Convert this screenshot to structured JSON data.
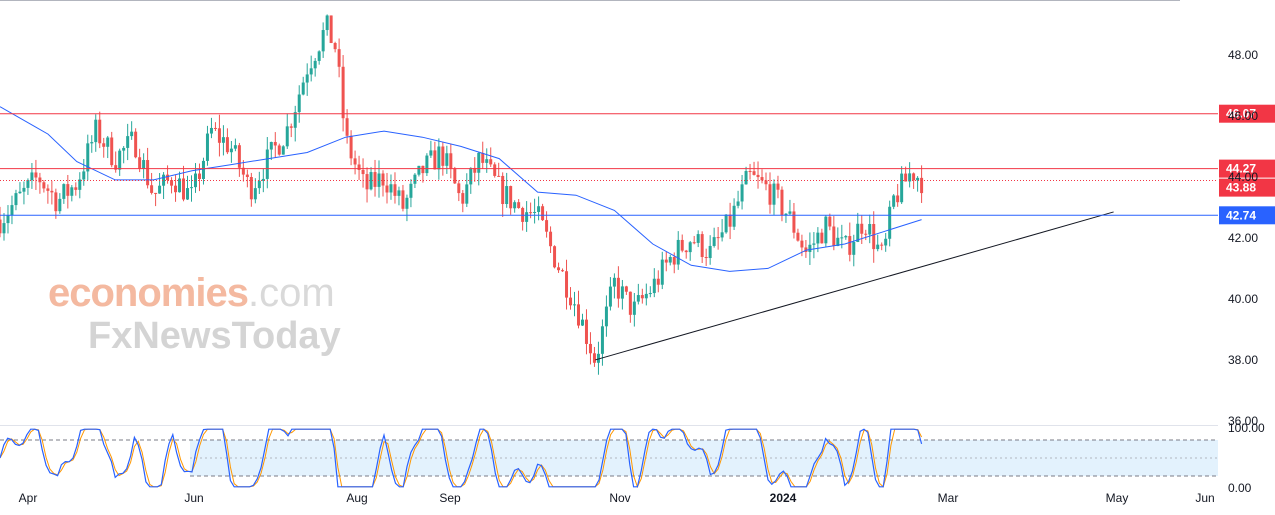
{
  "chart_data": {
    "type": "candlestick",
    "title": "",
    "y_ticks": [
      "48.00",
      "46.00",
      "44.00",
      "42.00",
      "40.00",
      "38.00",
      "36.00"
    ],
    "y_range": [
      35.9,
      49.6
    ],
    "x_labels": [
      "Apr",
      "Jun",
      "Aug",
      "Sep",
      "Nov",
      "2024",
      "Mar",
      "May",
      "Jun"
    ],
    "x_label_bold": "2024",
    "horizontal_levels": [
      {
        "value": 46.07,
        "label": "46.07",
        "color": "#f23645"
      },
      {
        "value": 44.27,
        "label": "44.27",
        "color": "#f23645"
      },
      {
        "value": 43.88,
        "label": "43.88",
        "color": "#f23645",
        "style": "dotted"
      },
      {
        "value": 42.74,
        "label": "42.74",
        "color": "#2962ff"
      }
    ],
    "trendline": {
      "from": {
        "x_index": 0.62,
        "value": 38.0
      },
      "to": {
        "x_index": 1.16,
        "value": 42.85
      },
      "color": "#131722"
    },
    "moving_average_color": "#2962ff",
    "up_color": "#26a69a",
    "down_color": "#ef5350",
    "price_path": [
      [
        0.0,
        42.6
      ],
      [
        0.02,
        43.3
      ],
      [
        0.04,
        44.0
      ],
      [
        0.06,
        43.2
      ],
      [
        0.08,
        43.8
      ],
      [
        0.1,
        45.5
      ],
      [
        0.12,
        44.6
      ],
      [
        0.14,
        45.2
      ],
      [
        0.16,
        43.4
      ],
      [
        0.18,
        44.0
      ],
      [
        0.2,
        43.3
      ],
      [
        0.22,
        45.5
      ],
      [
        0.24,
        45.0
      ],
      [
        0.26,
        43.6
      ],
      [
        0.28,
        44.6
      ],
      [
        0.3,
        45.6
      ],
      [
        0.32,
        47.6
      ],
      [
        0.34,
        48.9
      ],
      [
        0.35,
        48.2
      ],
      [
        0.36,
        45.2
      ],
      [
        0.38,
        43.6
      ],
      [
        0.4,
        44.0
      ],
      [
        0.42,
        43.0
      ],
      [
        0.44,
        44.2
      ],
      [
        0.46,
        44.8
      ],
      [
        0.48,
        43.2
      ],
      [
        0.5,
        44.6
      ],
      [
        0.52,
        43.6
      ],
      [
        0.54,
        43.0
      ],
      [
        0.56,
        42.7
      ],
      [
        0.58,
        41.2
      ],
      [
        0.6,
        39.8
      ],
      [
        0.62,
        38.0
      ],
      [
        0.64,
        40.5
      ],
      [
        0.66,
        39.6
      ],
      [
        0.68,
        40.4
      ],
      [
        0.7,
        41.4
      ],
      [
        0.72,
        42.0
      ],
      [
        0.74,
        41.5
      ],
      [
        0.76,
        42.5
      ],
      [
        0.78,
        44.0
      ],
      [
        0.8,
        43.6
      ],
      [
        0.82,
        42.8
      ],
      [
        0.84,
        41.5
      ],
      [
        0.86,
        42.4
      ],
      [
        0.88,
        41.6
      ],
      [
        0.9,
        42.6
      ],
      [
        0.92,
        41.3
      ],
      [
        0.93,
        43.2
      ],
      [
        0.95,
        44.2
      ],
      [
        0.96,
        43.9
      ]
    ],
    "ma_path": [
      [
        0.0,
        46.3
      ],
      [
        0.05,
        45.4
      ],
      [
        0.08,
        44.5
      ],
      [
        0.12,
        43.9
      ],
      [
        0.16,
        43.9
      ],
      [
        0.2,
        44.2
      ],
      [
        0.24,
        44.4
      ],
      [
        0.28,
        44.6
      ],
      [
        0.32,
        44.8
      ],
      [
        0.36,
        45.3
      ],
      [
        0.4,
        45.5
      ],
      [
        0.44,
        45.3
      ],
      [
        0.48,
        45.0
      ],
      [
        0.52,
        44.6
      ],
      [
        0.56,
        43.5
      ],
      [
        0.6,
        43.4
      ],
      [
        0.64,
        42.9
      ],
      [
        0.68,
        41.8
      ],
      [
        0.72,
        41.1
      ],
      [
        0.76,
        40.9
      ],
      [
        0.8,
        41.0
      ],
      [
        0.84,
        41.6
      ],
      [
        0.88,
        41.8
      ],
      [
        0.92,
        42.2
      ],
      [
        0.96,
        42.6
      ]
    ],
    "oscillator": {
      "levels": [
        "100.00",
        "0.00"
      ],
      "upper_band": 80,
      "lower_band": 20,
      "range": [
        0,
        100
      ],
      "k_color": "#2962ff",
      "d_color": "#ff9800",
      "band_fill": "#e3f2fd"
    }
  },
  "watermark": {
    "line1_main": "economies",
    "line1_suffix": ".com",
    "line2": "FxNewsToday"
  }
}
